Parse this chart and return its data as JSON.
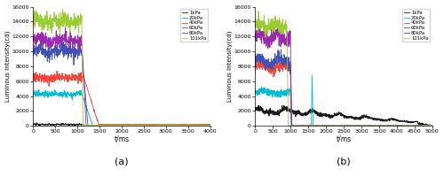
{
  "title_a": "(a)",
  "title_b": "(b)",
  "xlabel": "t/ms",
  "ylabel": "Luminous Intensity(cd)",
  "legend_labels": [
    "1kPa",
    "20kPa",
    "40kPa",
    "60kPa",
    "80kPa",
    "101kPa"
  ],
  "colors": [
    "#1a1a1a",
    "#00bcd4",
    "#f44336",
    "#3f51b5",
    "#9c27b0",
    "#9acd32"
  ],
  "xlim_a": [
    0,
    4000
  ],
  "xlim_b": [
    0,
    5000
  ],
  "ylim": [
    0,
    16000
  ],
  "yticks": [
    0,
    2000,
    4000,
    6000,
    8000,
    10000,
    12000,
    14000,
    16000
  ],
  "xticks_a": [
    0,
    500,
    1000,
    1500,
    2000,
    2500,
    3000,
    3500,
    4000
  ],
  "xticks_b": [
    0,
    500,
    1000,
    1500,
    2000,
    2500,
    3000,
    3500,
    4000,
    4500,
    5000
  ],
  "figsize": [
    5.0,
    2.0
  ],
  "dpi": 100
}
